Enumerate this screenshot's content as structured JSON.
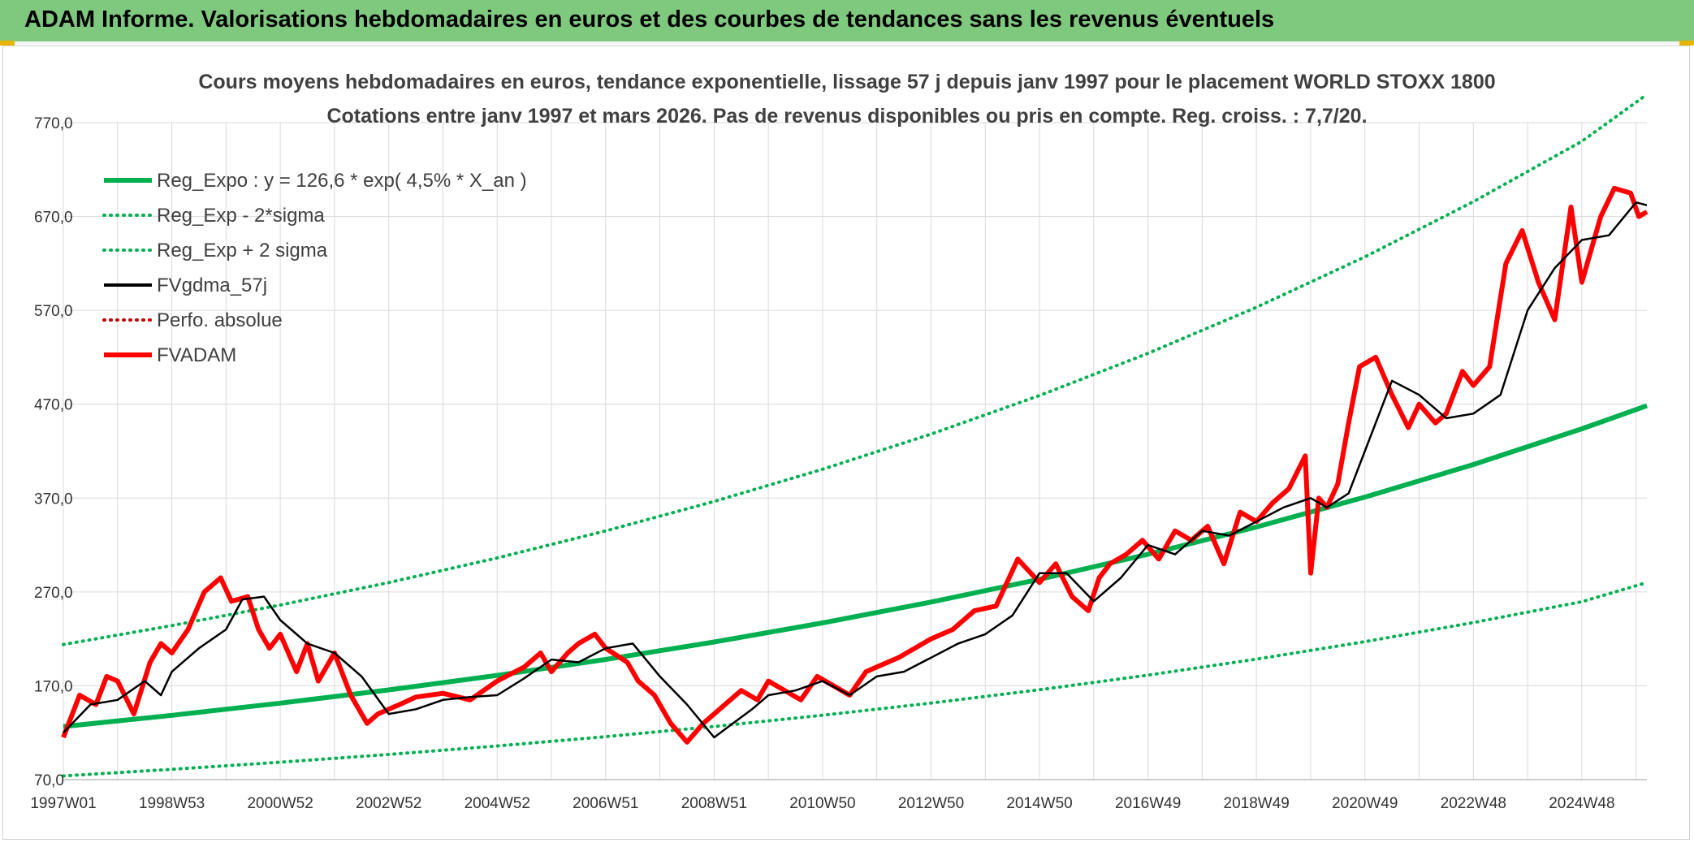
{
  "header": {
    "title": "ADAM Informe. Valorisations hebdomadaires en euros et des courbes de tendances sans les revenus éventuels"
  },
  "colors": {
    "header_bg": "#7fc97f",
    "regression": "#00b050",
    "sigma": "#00b050",
    "gdma": "#000000",
    "perfo": "#c00000",
    "fvadam": "#ff0000",
    "grid": "#d9d9d9"
  },
  "chart_data": {
    "type": "line",
    "title_line1": "Cours moyens hebdomadaires en euros, tendance exponentielle, lissage 57 j depuis janv 1997 pour le placement WORLD STOXX 1800",
    "title_line2": "Cotations entre janv 1997 et mars 2026. Pas de revenus disponibles ou pris en compte. Reg. croiss. : 7,7/20.",
    "xlabel": "",
    "ylabel": "",
    "ylim": [
      70,
      770
    ],
    "xlim": [
      1997.0,
      2026.2
    ],
    "yticks": [
      {
        "value": 770,
        "label": "770,0"
      },
      {
        "value": 670,
        "label": "670,0"
      },
      {
        "value": 570,
        "label": "570,0"
      },
      {
        "value": 470,
        "label": "470,0"
      },
      {
        "value": 370,
        "label": "370,0"
      },
      {
        "value": 270,
        "label": "270,0"
      },
      {
        "value": 170,
        "label": "170,0"
      },
      {
        "value": 70,
        "label": "70,0"
      }
    ],
    "xticks": [
      {
        "x": 1997.0,
        "label": "1997W01"
      },
      {
        "x": 1999.0,
        "label": "1998W53"
      },
      {
        "x": 2001.0,
        "label": "2000W52"
      },
      {
        "x": 2003.0,
        "label": "2002W52"
      },
      {
        "x": 2005.0,
        "label": "2004W52"
      },
      {
        "x": 2007.0,
        "label": "2006W51"
      },
      {
        "x": 2009.0,
        "label": "2008W51"
      },
      {
        "x": 2011.0,
        "label": "2010W50"
      },
      {
        "x": 2013.0,
        "label": "2012W50"
      },
      {
        "x": 2015.0,
        "label": "2014W50"
      },
      {
        "x": 2017.0,
        "label": "2016W49"
      },
      {
        "x": 2019.0,
        "label": "2018W49"
      },
      {
        "x": 2021.0,
        "label": "2020W49"
      },
      {
        "x": 2023.0,
        "label": "2022W48"
      },
      {
        "x": 2025.0,
        "label": "2024W48"
      }
    ],
    "grid": true,
    "legend_position": "top-left",
    "series": [
      {
        "name": "Reg_Expo : y = 126,6 * exp( 4,5% *  X_an )",
        "style": "thick-solid",
        "color": "#00b050",
        "x": [
          1997.0,
          1999.0,
          2001.0,
          2003.0,
          2005.0,
          2007.0,
          2009.0,
          2011.0,
          2013.0,
          2015.0,
          2017.0,
          2019.0,
          2021.0,
          2023.0,
          2025.0,
          2026.2
        ],
        "values": [
          126.6,
          138.5,
          151.5,
          165.6,
          181.1,
          198.1,
          216.7,
          237.0,
          259.2,
          283.5,
          310.1,
          339.2,
          371.0,
          405.7,
          443.8,
          468.4
        ]
      },
      {
        "name": "Reg_Exp - 2*sigma",
        "style": "dotted",
        "color": "#00b050",
        "x": [
          1997.0,
          1999.0,
          2001.0,
          2003.0,
          2005.0,
          2007.0,
          2009.0,
          2011.0,
          2013.0,
          2015.0,
          2017.0,
          2019.0,
          2021.0,
          2023.0,
          2025.0,
          2026.2
        ],
        "values": [
          74.0,
          81.0,
          88.6,
          96.8,
          105.9,
          115.8,
          126.7,
          138.6,
          151.6,
          165.8,
          181.4,
          198.4,
          217.0,
          237.3,
          259.6,
          280.0
        ]
      },
      {
        "name": "Reg_Exp + 2 sigma",
        "style": "dotted",
        "color": "#00b050",
        "x": [
          1997.0,
          1999.0,
          2001.0,
          2003.0,
          2005.0,
          2007.0,
          2009.0,
          2011.0,
          2013.0,
          2015.0,
          2017.0,
          2019.0,
          2021.0,
          2023.0,
          2025.0,
          2026.2
        ],
        "values": [
          214.0,
          234.1,
          256.0,
          280.0,
          306.2,
          335.0,
          366.4,
          400.7,
          438.2,
          479.3,
          524.2,
          573.3,
          627.0,
          685.8,
          750.1,
          800.0
        ]
      },
      {
        "name": "FVgdma_57j",
        "style": "solid",
        "color": "#000000",
        "x": [
          1997.0,
          1997.5,
          1998.0,
          1998.5,
          1998.8,
          1999.0,
          1999.5,
          2000.0,
          2000.3,
          2000.7,
          2001.0,
          2001.5,
          2002.0,
          2002.5,
          2003.0,
          2003.5,
          2004.0,
          2004.5,
          2005.0,
          2005.5,
          2006.0,
          2006.5,
          2007.0,
          2007.5,
          2008.0,
          2008.5,
          2009.0,
          2009.3,
          2009.7,
          2010.0,
          2010.5,
          2011.0,
          2011.5,
          2012.0,
          2012.5,
          2013.0,
          2013.5,
          2014.0,
          2014.5,
          2015.0,
          2015.5,
          2016.0,
          2016.5,
          2017.0,
          2017.5,
          2018.0,
          2018.5,
          2019.0,
          2019.5,
          2020.0,
          2020.3,
          2020.7,
          2021.0,
          2021.5,
          2022.0,
          2022.5,
          2023.0,
          2023.5,
          2024.0,
          2024.5,
          2025.0,
          2025.5,
          2026.0,
          2026.2
        ],
        "values": [
          120,
          150,
          155,
          175,
          160,
          185,
          210,
          230,
          262,
          265,
          240,
          215,
          205,
          180,
          140,
          145,
          155,
          158,
          160,
          178,
          198,
          195,
          210,
          215,
          180,
          150,
          115,
          128,
          145,
          160,
          165,
          175,
          160,
          180,
          185,
          200,
          215,
          225,
          245,
          290,
          290,
          260,
          285,
          320,
          310,
          335,
          330,
          345,
          360,
          370,
          360,
          375,
          420,
          495,
          480,
          455,
          460,
          480,
          570,
          615,
          645,
          650,
          685,
          682
        ]
      },
      {
        "name": "Perfo. absolue",
        "style": "dotted",
        "color": "#c00000",
        "x": [],
        "values": []
      },
      {
        "name": "FVADAM",
        "style": "thick-solid",
        "color": "#ff0000",
        "x": [
          1997.0,
          1997.3,
          1997.6,
          1997.8,
          1998.0,
          1998.3,
          1998.6,
          1998.8,
          1999.0,
          1999.3,
          1999.6,
          1999.9,
          2000.1,
          2000.4,
          2000.6,
          2000.8,
          2001.0,
          2001.3,
          2001.5,
          2001.7,
          2002.0,
          2002.3,
          2002.6,
          2002.8,
          2003.0,
          2003.2,
          2003.5,
          2004.0,
          2004.5,
          2005.0,
          2005.5,
          2005.8,
          2006.0,
          2006.3,
          2006.5,
          2006.8,
          2007.0,
          2007.4,
          2007.6,
          2007.9,
          2008.2,
          2008.5,
          2008.8,
          2009.0,
          2009.2,
          2009.5,
          2009.8,
          2010.0,
          2010.3,
          2010.6,
          2010.9,
          2011.2,
          2011.5,
          2011.8,
          2012.0,
          2012.4,
          2012.7,
          2013.0,
          2013.4,
          2013.8,
          2014.2,
          2014.6,
          2015.0,
          2015.3,
          2015.6,
          2015.9,
          2016.1,
          2016.3,
          2016.6,
          2016.9,
          2017.2,
          2017.5,
          2017.8,
          2018.1,
          2018.4,
          2018.7,
          2019.0,
          2019.3,
          2019.6,
          2019.9,
          2020.0,
          2020.15,
          2020.3,
          2020.5,
          2020.7,
          2020.9,
          2021.2,
          2021.5,
          2021.8,
          2022.0,
          2022.3,
          2022.5,
          2022.8,
          2023.0,
          2023.3,
          2023.6,
          2023.9,
          2024.2,
          2024.5,
          2024.8,
          2025.0,
          2025.2,
          2025.35,
          2025.6,
          2025.9,
          2026.05,
          2026.2
        ],
        "values": [
          115,
          160,
          150,
          180,
          175,
          140,
          195,
          215,
          205,
          230,
          270,
          285,
          260,
          265,
          230,
          210,
          225,
          185,
          215,
          175,
          205,
          160,
          130,
          140,
          145,
          150,
          158,
          162,
          155,
          175,
          190,
          205,
          185,
          205,
          215,
          225,
          210,
          195,
          175,
          160,
          130,
          110,
          130,
          140,
          150,
          165,
          155,
          175,
          165,
          155,
          180,
          170,
          160,
          185,
          190,
          200,
          210,
          220,
          230,
          250,
          255,
          305,
          280,
          300,
          265,
          250,
          285,
          300,
          310,
          325,
          305,
          335,
          325,
          340,
          300,
          355,
          345,
          365,
          380,
          415,
          290,
          370,
          360,
          385,
          450,
          510,
          520,
          480,
          445,
          470,
          450,
          460,
          505,
          490,
          510,
          620,
          655,
          600,
          560,
          680,
          600,
          640,
          670,
          700,
          695,
          670,
          675
        ]
      }
    ]
  }
}
